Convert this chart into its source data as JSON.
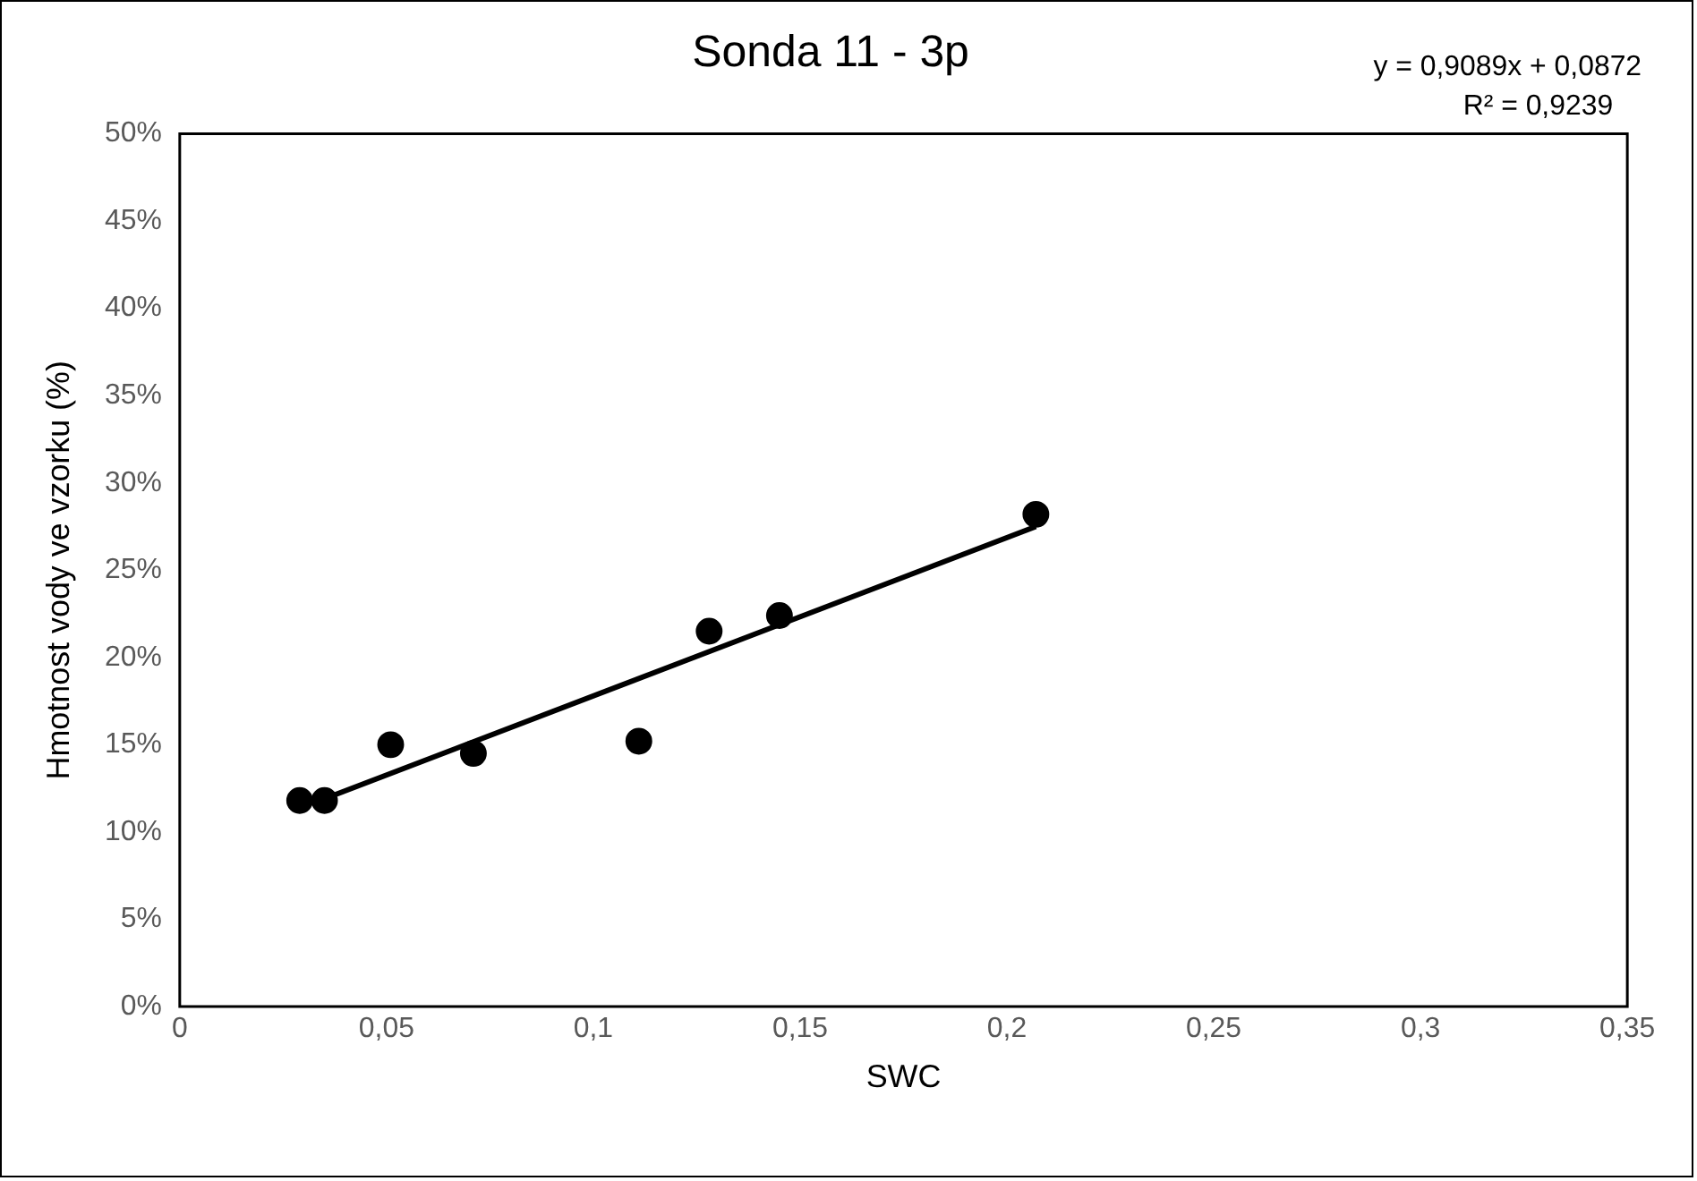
{
  "chart_data": {
    "type": "scatter",
    "title": "Sonda 11 - 3p",
    "xlabel": "SWC",
    "ylabel": "Hmotnost vody ve vzorku (%)",
    "annotations": [
      "y = 0,9089x + 0,0872",
      "R² = 0,9239"
    ],
    "marker": "circle",
    "grid": false,
    "legend": false,
    "xlim": [
      0,
      0.35
    ],
    "xticks": [
      0,
      {
        "value": 0.05,
        "label": "0,05"
      },
      {
        "value": 0.1,
        "label": "0,1"
      },
      {
        "value": 0.15,
        "label": "0,15"
      },
      {
        "value": 0.2,
        "label": "0,2"
      },
      {
        "value": 0.25,
        "label": "0,25"
      },
      {
        "value": 0.3,
        "label": "0,3"
      },
      {
        "value": 0.35,
        "label": "0,35"
      }
    ],
    "ylim": [
      0,
      0.5
    ],
    "yticks": [
      {
        "value": 0,
        "label": "0%"
      },
      {
        "value": 0.05,
        "label": "5%"
      },
      {
        "value": 0.1,
        "label": "10%"
      },
      {
        "value": 0.15,
        "label": "15%"
      },
      {
        "value": 0.2,
        "label": "20%"
      },
      {
        "value": 0.25,
        "label": "25%"
      },
      {
        "value": 0.3,
        "label": "30%"
      },
      {
        "value": 0.35,
        "label": "35%"
      },
      {
        "value": 0.4,
        "label": "40%"
      },
      {
        "value": 0.45,
        "label": "45%"
      },
      {
        "value": 0.5,
        "label": "50%"
      }
    ],
    "series": [
      {
        "type": "scatter",
        "color": "#000000",
        "x": [
          0.029,
          0.035,
          0.051,
          0.071,
          0.111,
          0.128,
          0.145,
          0.207
        ],
        "values": [
          0.118,
          0.118,
          0.15,
          0.145,
          0.152,
          0.215,
          0.224,
          0.282
        ]
      },
      {
        "type": "line",
        "color": "#000000",
        "marker": "none",
        "x": [
          0.035,
          0.207
        ],
        "values": [
          0.119,
          0.275
        ]
      }
    ]
  }
}
